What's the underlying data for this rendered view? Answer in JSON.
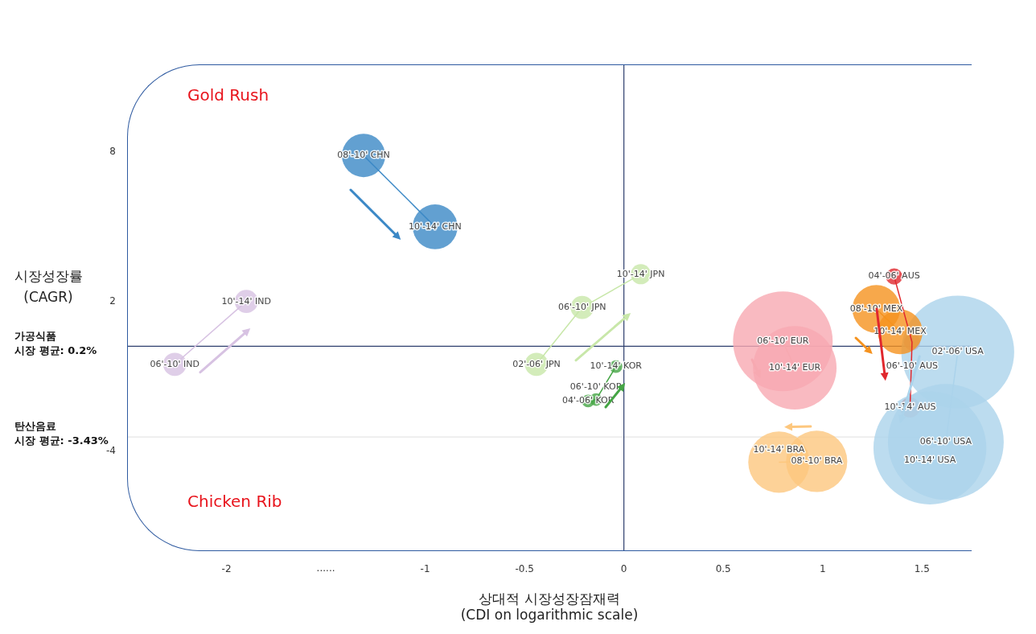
{
  "chart_data": {
    "type": "bubble",
    "xlabel": "상대적 시장성장잠재력\n(CDI on logarithmic scale)",
    "ylabel": "시장성장률\n(CAGR)",
    "xlim": [
      -2.5,
      1.75
    ],
    "xticks": [
      -2,
      -1,
      -0.5,
      0,
      0.5,
      1,
      1.5
    ],
    "ylim": [
      -8,
      11.5
    ],
    "yticks": [
      8,
      2,
      -4
    ],
    "grid": false,
    "legend": false,
    "line_style": "solid",
    "annotations": [
      "Gold Rush",
      "Chicken Rib",
      "......"
    ],
    "ref_lines": [
      {
        "axis": "y",
        "value": 0.2,
        "label": "가공식품\n시장 평균: 0.2%",
        "color": "#2e3f6e"
      },
      {
        "axis": "y",
        "value": -3.43,
        "label": "탄산음료\n시장 평균: -3.43%",
        "color": "#e6e6e6"
      },
      {
        "axis": "x",
        "value": 0,
        "color": "#2e3f6e"
      }
    ],
    "series": [
      {
        "color": "#3b88c6",
        "x": [
          -1.31,
          -0.95
        ],
        "values": [
          7.85,
          4.99
        ],
        "sizes": [
          0.14,
          0.15
        ],
        "value_labels": [
          "08'-10' CHN",
          "10'-14' CHN"
        ]
      },
      {
        "color": "#d7c2e2",
        "x": [
          -2.26,
          -1.9
        ],
        "values": [
          -0.52,
          2.0
        ],
        "sizes": [
          0.04,
          0.04
        ],
        "value_labels": [
          "06'-10' IND",
          "10'-14' IND"
        ]
      },
      {
        "color": "#c8e7a9",
        "x": [
          -0.44,
          -0.21,
          0.085
        ],
        "values": [
          -0.52,
          1.76,
          3.09
        ],
        "sizes": [
          0.04,
          0.04,
          0.03
        ],
        "value_labels": [
          "02'-06' JPN",
          "06'-10' JPN",
          "10'-14' JPN"
        ]
      },
      {
        "color": "#45a545",
        "x": [
          -0.18,
          -0.14,
          -0.04
        ],
        "values": [
          -1.99,
          -1.93,
          -0.61
        ],
        "sizes": [
          0.012,
          0.012,
          0.012
        ],
        "value_labels": [
          "04'-06' KOR",
          "06'-10' KOR",
          "10'-14' KOR"
        ]
      },
      {
        "color": "#f7a9b1",
        "x": [
          0.8,
          0.86
        ],
        "values": [
          0.4,
          -0.66
        ],
        "sizes": [
          0.74,
          0.52
        ],
        "value_labels": [
          "06'-10' EUR",
          "10'-14' EUR"
        ]
      },
      {
        "color": "#f5921e",
        "x": [
          1.27,
          1.39
        ],
        "values": [
          1.7,
          0.78
        ],
        "sizes": [
          0.17,
          0.15
        ],
        "value_labels": [
          "08'-10' MEX",
          "10'-14' MEX"
        ]
      },
      {
        "color": "#fdc77e",
        "x": [
          0.97,
          0.78
        ],
        "values": [
          -4.41,
          -4.44
        ],
        "sizes": [
          0.28,
          0.28
        ],
        "value_labels": [
          "08'-10' BRA",
          "10'-14' BRA"
        ]
      },
      {
        "color": "#abd3eb",
        "x": [
          1.68,
          1.62,
          1.54
        ],
        "values": [
          -0.03,
          -3.63,
          -3.87
        ],
        "sizes": [
          0.95,
          1,
          0.95
        ],
        "value_labels": [
          "02'-06' USA",
          "06'-10' USA",
          "10'-14' USA"
        ]
      },
      {
        "color": "#e0282e",
        "x": [
          1.36,
          1.45,
          1.44
        ],
        "values": [
          3.0,
          0.37,
          -2.25
        ],
        "sizes": [
          0.02,
          0.02,
          0.03
        ],
        "value_labels": [
          "04'-06' AUS",
          "06'-10' AUS",
          "10'-14' AUS"
        ]
      }
    ]
  }
}
